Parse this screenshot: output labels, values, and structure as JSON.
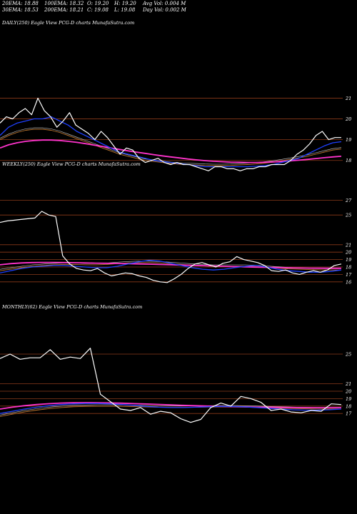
{
  "stats": {
    "row1": [
      "20EMA: 18.88",
      "100EMA: 18.32",
      "O: 19.20",
      "H: 19.20",
      "Avg Vol: 0.004  M"
    ],
    "row2": [
      "30EMA: 18.53",
      "200EMA: 18.21",
      "C: 19.08",
      "L: 19.08",
      "Day Vol: 0.002  M"
    ]
  },
  "colors": {
    "background": "#000000",
    "price": "#ffffff",
    "level_line": "#8b3a1a",
    "ema_short": "#1e40ff",
    "ema_long": "#ff33cc",
    "ema_mid": "#c07830",
    "ema_grey": "#d0d0d0"
  },
  "chart_data": [
    {
      "type": "line",
      "title": "DAILY(250) Eagle  View  PCG-D charts MunafaSutra.com",
      "levels": [
        21,
        20,
        19,
        18
      ],
      "level_labels": [
        "21",
        "20",
        "19",
        "18"
      ],
      "ylim": [
        17.2,
        21.6
      ],
      "series": [
        {
          "role": "price",
          "values": [
            19.8,
            20.1,
            20.0,
            20.3,
            20.5,
            20.2,
            21.0,
            20.4,
            20.1,
            19.6,
            19.9,
            20.3,
            19.7,
            19.5,
            19.3,
            19.0,
            19.4,
            19.1,
            18.7,
            18.3,
            18.6,
            18.5,
            18.1,
            17.9,
            18.0,
            18.1,
            17.9,
            17.8,
            17.9,
            17.8,
            17.8,
            17.7,
            17.6,
            17.5,
            17.7,
            17.7,
            17.6,
            17.6,
            17.5,
            17.6,
            17.6,
            17.7,
            17.7,
            17.8,
            17.8,
            17.8,
            18.0,
            18.3,
            18.5,
            18.8,
            19.2,
            19.4,
            19.0,
            19.1,
            19.1
          ]
        },
        {
          "role": "ema_short",
          "values": [
            19.2,
            19.6,
            19.8,
            19.9,
            20.0,
            20.0,
            20.1,
            19.9,
            19.7,
            19.4,
            19.2,
            19.0,
            18.8,
            18.6,
            18.4,
            18.3,
            18.2,
            18.1,
            18.0,
            17.95,
            17.9,
            17.85,
            17.8,
            17.75,
            17.7,
            17.7,
            17.7,
            17.7,
            17.7,
            17.7,
            17.72,
            17.75,
            17.8,
            17.9,
            18.0,
            18.1,
            18.3,
            18.5,
            18.7,
            18.85,
            18.9
          ]
        },
        {
          "role": "ema_mid",
          "values": [
            19.0,
            19.2,
            19.35,
            19.45,
            19.5,
            19.5,
            19.45,
            19.35,
            19.2,
            19.05,
            18.9,
            18.75,
            18.6,
            18.45,
            18.3,
            18.2,
            18.1,
            18.0,
            17.95,
            17.9,
            17.85,
            17.82,
            17.8,
            17.78,
            17.76,
            17.75,
            17.75,
            17.76,
            17.78,
            17.8,
            17.83,
            17.87,
            17.92,
            17.98,
            18.05,
            18.12,
            18.2,
            18.3,
            18.4,
            18.5,
            18.55
          ]
        },
        {
          "role": "ema_long",
          "values": [
            18.6,
            18.75,
            18.85,
            18.92,
            18.96,
            18.98,
            18.98,
            18.96,
            18.92,
            18.87,
            18.81,
            18.74,
            18.67,
            18.6,
            18.53,
            18.46,
            18.4,
            18.34,
            18.28,
            18.22,
            18.17,
            18.12,
            18.07,
            18.03,
            17.99,
            17.96,
            17.94,
            17.92,
            17.91,
            17.9,
            17.9,
            17.91,
            17.93,
            17.95,
            17.98,
            18.01,
            18.05,
            18.09,
            18.13,
            18.17,
            18.2
          ]
        }
      ]
    },
    {
      "type": "line",
      "title": "WEEKLY(250) Eagle  View  PCG-D charts MunafaSutra.com",
      "levels": [
        27,
        25,
        21,
        20,
        19,
        18,
        17,
        16
      ],
      "level_labels": [
        "27",
        "25",
        "21",
        "20",
        "19",
        "18",
        "17",
        "16"
      ],
      "ylim": [
        15.5,
        28
      ],
      "series": [
        {
          "role": "price",
          "values": [
            24.0,
            24.2,
            24.3,
            24.4,
            24.5,
            24.6,
            25.5,
            25.0,
            24.8,
            19.5,
            18.4,
            17.8,
            17.6,
            17.5,
            17.8,
            17.2,
            16.8,
            17.0,
            17.2,
            17.1,
            16.8,
            16.6,
            16.2,
            16.0,
            15.9,
            16.4,
            17.0,
            17.8,
            18.4,
            18.6,
            18.3,
            18.0,
            18.5,
            18.7,
            19.4,
            19.0,
            18.8,
            18.6,
            18.2,
            17.5,
            17.4,
            17.6,
            17.2,
            17.0,
            17.3,
            17.5,
            17.3,
            17.6,
            18.2,
            18.4
          ]
        },
        {
          "role": "ema_short",
          "values": [
            17.2,
            17.5,
            17.8,
            18.0,
            18.1,
            18.2,
            18.2,
            18.1,
            18.0,
            17.9,
            17.9,
            18.1,
            18.4,
            18.7,
            18.9,
            18.8,
            18.5,
            18.2,
            17.9,
            17.7,
            17.6,
            17.7,
            17.9,
            18.1,
            18.2,
            18.0,
            17.7,
            17.5,
            17.4,
            17.3,
            17.3,
            17.4,
            17.6
          ]
        },
        {
          "role": "ema_mid",
          "values": [
            17.5,
            17.7,
            17.9,
            18.1,
            18.2,
            18.3,
            18.35,
            18.35,
            18.3,
            18.3,
            18.35,
            18.45,
            18.55,
            18.6,
            18.6,
            18.55,
            18.45,
            18.35,
            18.25,
            18.15,
            18.1,
            18.1,
            18.1,
            18.1,
            18.05,
            17.95,
            17.85,
            17.75,
            17.7,
            17.65,
            17.62,
            17.6,
            17.6
          ]
        },
        {
          "role": "ema_long",
          "values": [
            18.3,
            18.45,
            18.55,
            18.6,
            18.62,
            18.62,
            18.6,
            18.58,
            18.55,
            18.52,
            18.5,
            18.47,
            18.44,
            18.41,
            18.38,
            18.34,
            18.3,
            18.26,
            18.22,
            18.18,
            18.14,
            18.1,
            18.06,
            18.02,
            17.98,
            17.95,
            17.92,
            17.89,
            17.87,
            17.85,
            17.84,
            17.83,
            17.83
          ]
        }
      ]
    },
    {
      "type": "line",
      "title": "MONTHLY(62) Eagle  View  PCG-D charts MunafaSutra.com",
      "levels": [
        25,
        21,
        20,
        19,
        18,
        17
      ],
      "level_labels": [
        "25",
        "21",
        "20",
        "19",
        "18",
        "17"
      ],
      "ylim": [
        15.0,
        27.5
      ],
      "series": [
        {
          "role": "price",
          "values": [
            24.4,
            25.0,
            24.3,
            24.5,
            24.5,
            25.6,
            24.3,
            24.6,
            24.4,
            25.8,
            19.6,
            18.6,
            17.6,
            17.4,
            17.8,
            16.9,
            17.3,
            17.1,
            16.3,
            15.8,
            16.2,
            17.8,
            18.4,
            18.0,
            19.3,
            19.0,
            18.5,
            17.4,
            17.6,
            17.2,
            17.1,
            17.4,
            17.3,
            18.3,
            18.2
          ]
        },
        {
          "role": "ema_short",
          "values": [
            17.0,
            17.3,
            17.6,
            17.85,
            18.05,
            18.2,
            18.3,
            18.35,
            18.35,
            18.3,
            18.2,
            18.1,
            17.95,
            17.85,
            17.8,
            17.8,
            17.85,
            17.9,
            17.95,
            17.95,
            17.9,
            17.8,
            17.7,
            17.6,
            17.5,
            17.45,
            17.45,
            17.5,
            17.6
          ]
        },
        {
          "role": "ema_mid",
          "values": [
            16.6,
            16.9,
            17.2,
            17.45,
            17.65,
            17.8,
            17.9,
            17.95,
            17.98,
            17.98,
            17.96,
            17.92,
            17.88,
            17.84,
            17.82,
            17.82,
            17.84,
            17.86,
            17.88,
            17.88,
            17.86,
            17.82,
            17.77,
            17.72,
            17.67,
            17.63,
            17.61,
            17.6,
            17.62
          ]
        },
        {
          "role": "ema_long",
          "values": [
            17.6,
            17.85,
            18.05,
            18.2,
            18.32,
            18.4,
            18.45,
            18.46,
            18.45,
            18.42,
            18.38,
            18.33,
            18.28,
            18.22,
            18.16,
            18.1,
            18.05,
            18.0,
            17.96,
            17.92,
            17.89,
            17.86,
            17.84,
            17.82,
            17.8,
            17.79,
            17.78,
            17.78,
            17.79
          ]
        }
      ]
    }
  ]
}
